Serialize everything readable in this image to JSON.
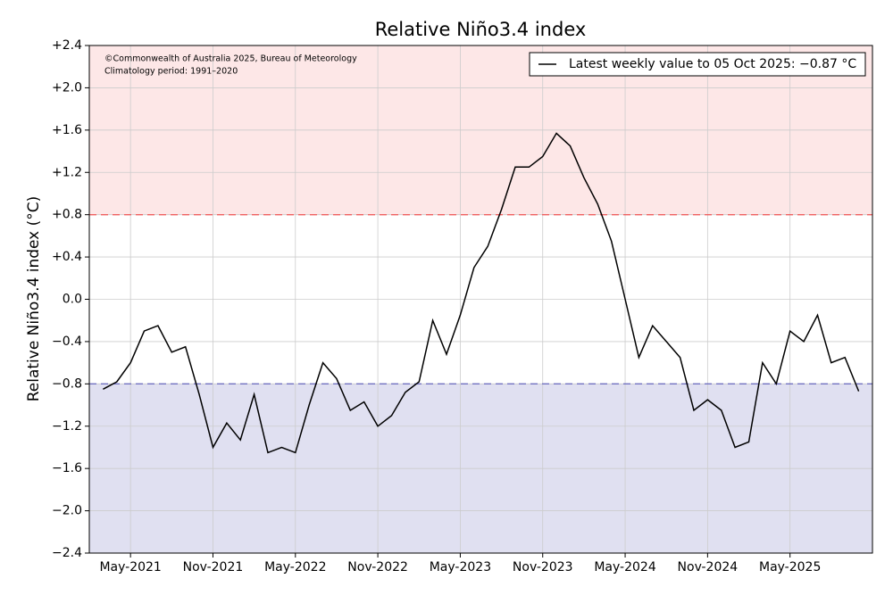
{
  "chart_data": {
    "type": "line",
    "title": "Relative Niño3.4 index",
    "y_label": "Relative Niño3.4 index (°C)",
    "annotations": [
      "©Commonwealth of Australia 2025, Bureau of Meteorology",
      "Climatology period: 1991–2020"
    ],
    "x": [
      "2021-03",
      "2021-04",
      "2021-05",
      "2021-06",
      "2021-07",
      "2021-08",
      "2021-09",
      "2021-10",
      "2021-11",
      "2021-12",
      "2022-01",
      "2022-02",
      "2022-03",
      "2022-04",
      "2022-05",
      "2022-06",
      "2022-07",
      "2022-08",
      "2022-09",
      "2022-10",
      "2022-11",
      "2022-12",
      "2023-01",
      "2023-02",
      "2023-03",
      "2023-04",
      "2023-05",
      "2023-06",
      "2023-07",
      "2023-08",
      "2023-09",
      "2023-10",
      "2023-11",
      "2023-12",
      "2024-01",
      "2024-02",
      "2024-03",
      "2024-04",
      "2024-05",
      "2024-06",
      "2024-07",
      "2024-08",
      "2024-09",
      "2024-10",
      "2024-11",
      "2024-12",
      "2025-01",
      "2025-02",
      "2025-03",
      "2025-04",
      "2025-05",
      "2025-06",
      "2025-07",
      "2025-08",
      "2025-09",
      "2025-10"
    ],
    "series": [
      {
        "name": "Latest weekly value to 05 Oct 2025: −0.87 °C",
        "color": "#000000",
        "values": [
          -0.85,
          -0.78,
          -0.6,
          -0.3,
          -0.25,
          -0.5,
          -0.45,
          -0.9,
          -1.4,
          -1.17,
          -1.33,
          -0.9,
          -1.45,
          -1.4,
          -1.45,
          -1.0,
          -0.6,
          -0.75,
          -1.05,
          -0.97,
          -1.2,
          -1.1,
          -0.88,
          -0.78,
          -0.2,
          -0.52,
          -0.15,
          0.3,
          0.5,
          0.85,
          1.25,
          1.25,
          1.35,
          1.57,
          1.45,
          1.15,
          0.9,
          0.55,
          0.0,
          -0.55,
          -0.25,
          -0.4,
          -0.55,
          -1.05,
          -0.95,
          -1.05,
          -1.4,
          -1.35,
          -0.6,
          -0.8,
          -0.3,
          -0.4,
          -0.15,
          -0.6,
          -0.55,
          -0.87
        ]
      }
    ],
    "thresholds": [
      {
        "value": 0.8,
        "color": "#f06060"
      },
      {
        "value": -0.8,
        "color": "#7070c0"
      }
    ],
    "xlim": [
      "2021-02",
      "2025-11"
    ],
    "xticks": [
      {
        "value": "2021-05",
        "label": "May-2021"
      },
      {
        "value": "2021-11",
        "label": "Nov-2021"
      },
      {
        "value": "2022-05",
        "label": "May-2022"
      },
      {
        "value": "2022-11",
        "label": "Nov-2022"
      },
      {
        "value": "2023-05",
        "label": "May-2023"
      },
      {
        "value": "2023-11",
        "label": "Nov-2023"
      },
      {
        "value": "2024-05",
        "label": "May-2024"
      },
      {
        "value": "2024-11",
        "label": "Nov-2024"
      },
      {
        "value": "2025-05",
        "label": "May-2025"
      }
    ],
    "ylim": [
      -2.4,
      2.4
    ],
    "yticks": [
      {
        "value": -2.4,
        "label": "−2.4"
      },
      {
        "value": -2.0,
        "label": "−2.0"
      },
      {
        "value": -1.6,
        "label": "−1.6"
      },
      {
        "value": -1.2,
        "label": "−1.2"
      },
      {
        "value": -0.8,
        "label": "−0.8"
      },
      {
        "value": -0.4,
        "label": "−0.4"
      },
      {
        "value": 0,
        "label": "0.0"
      },
      {
        "value": 0.4,
        "label": "+0.4"
      },
      {
        "value": 0.8,
        "label": "+0.8"
      },
      {
        "value": 1.2,
        "label": "+1.2"
      },
      {
        "value": 1.6,
        "label": "+1.6"
      },
      {
        "value": 2.0,
        "label": "+2.0"
      },
      {
        "value": 2.4,
        "label": "+2.4"
      }
    ],
    "grid": true,
    "legend": "upper right"
  }
}
